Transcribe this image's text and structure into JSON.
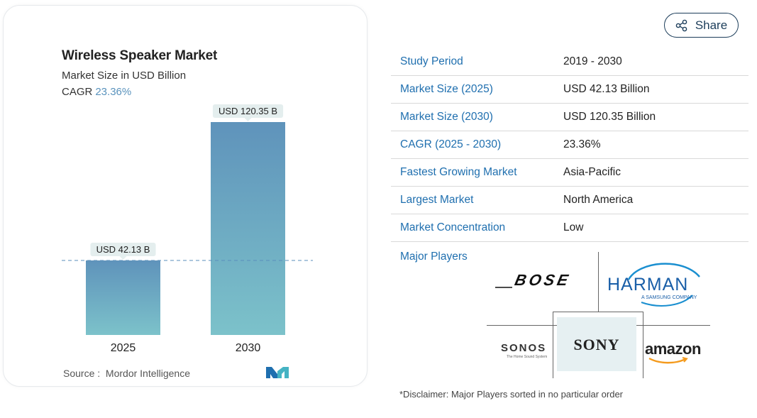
{
  "chart_data": {
    "type": "bar",
    "title": "Wireless Speaker Market",
    "subtitle": "Market Size in USD Billion",
    "cagr_label": "CAGR",
    "cagr_value": "23.36%",
    "categories": [
      "2025",
      "2030"
    ],
    "values": [
      42.13,
      120.35
    ],
    "data_labels": [
      "USD 42.13 B",
      "USD 120.35 B"
    ],
    "xlabel": "",
    "ylabel": "",
    "grid": false,
    "reference_line": 42.13,
    "colors": {
      "bar_top": "#5f93bb",
      "bar_bottom": "#7cc2ca",
      "label_bg": "#e4eeee",
      "ref_line": "#5a8fbb"
    }
  },
  "source": {
    "label": "Source :",
    "value": "Mordor Intelligence"
  },
  "share": {
    "label": "Share",
    "icon": "share-icon"
  },
  "summary": [
    {
      "key": "Study Period",
      "value": "2019 - 2030"
    },
    {
      "key": "Market Size (2025)",
      "value": "USD 42.13 Billion"
    },
    {
      "key": "Market Size (2030)",
      "value": "USD 120.35 Billion"
    },
    {
      "key": "CAGR (2025 - 2030)",
      "value": "23.36%"
    },
    {
      "key": "Fastest Growing Market",
      "value": "Asia-Pacific"
    },
    {
      "key": "Largest Market",
      "value": "North America"
    },
    {
      "key": "Market Concentration",
      "value": "Low"
    }
  ],
  "major_players": {
    "label": "Major Players",
    "logos": {
      "bose": "BOSE",
      "harman": "HARMAN",
      "harman_tag": "A SAMSUNG COMPANY",
      "sonos": "SONOS",
      "sonos_tag": "The Home Sound System",
      "sony": "SONY",
      "amazon": "amazon"
    }
  },
  "disclaimer": "*Disclaimer: Major Players sorted in no particular order"
}
